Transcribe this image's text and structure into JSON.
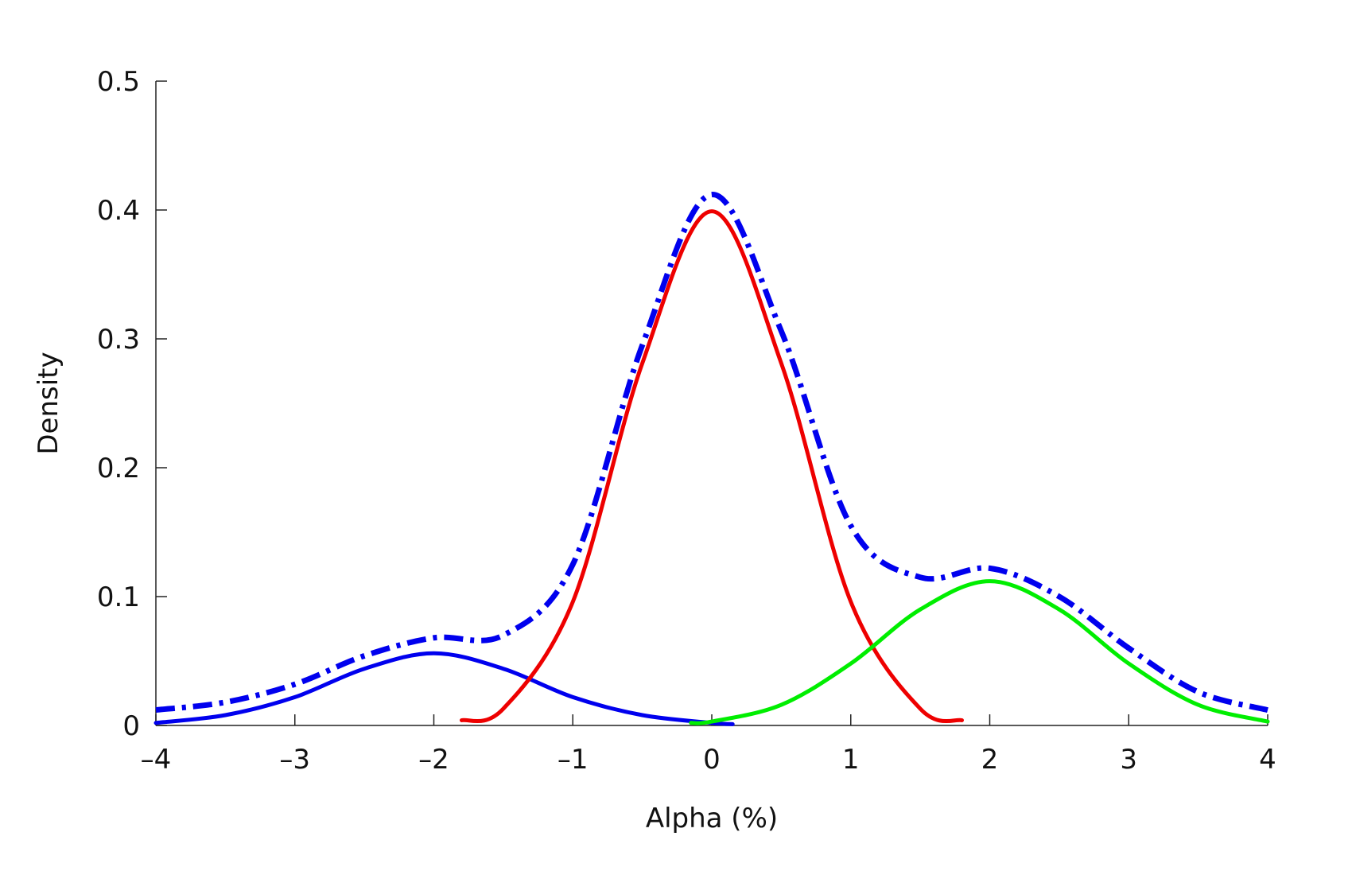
{
  "chart_data": {
    "type": "line",
    "title": "",
    "xlabel": "Alpha (%)",
    "ylabel": "Density",
    "xlim": [
      -4,
      4
    ],
    "ylim": [
      0,
      0.5
    ],
    "xticks": [
      -4,
      -3,
      -2,
      -1,
      0,
      1,
      2,
      3,
      4
    ],
    "xtick_labels": [
      "–4",
      "–3",
      "–2",
      "–1",
      "0",
      "1",
      "2",
      "3",
      "4"
    ],
    "yticks": [
      0,
      0.1,
      0.2,
      0.3,
      0.4,
      0.5
    ],
    "ytick_labels": [
      "0",
      "0.1",
      "0.2",
      "0.3",
      "0.4",
      "0.5"
    ],
    "grid": false,
    "legend": "none",
    "series": [
      {
        "color": "#0000ee",
        "style": "solid",
        "x": [
          -4,
          -3.5,
          -3,
          -2.5,
          -2,
          -1.5,
          -1,
          -0.5,
          0,
          0.15
        ],
        "y": [
          0.002,
          0.008,
          0.022,
          0.044,
          0.056,
          0.044,
          0.022,
          0.008,
          0.002,
          0.001
        ]
      },
      {
        "color": "#ee0000",
        "style": "solid",
        "x": [
          -1.8,
          -1.5,
          -1,
          -0.5,
          0,
          0.5,
          1,
          1.5,
          1.8
        ],
        "y": [
          0.004,
          0.013,
          0.096,
          0.281,
          0.399,
          0.281,
          0.096,
          0.013,
          0.004
        ]
      },
      {
        "color": "#00ee00",
        "style": "solid",
        "x": [
          -0.15,
          0,
          0.5,
          1,
          1.5,
          2,
          2.5,
          3,
          3.5,
          4
        ],
        "y": [
          0.002,
          0.003,
          0.016,
          0.048,
          0.09,
          0.112,
          0.09,
          0.048,
          0.016,
          0.003
        ]
      },
      {
        "color": "#0000ee",
        "style": "dash-dot",
        "x": [
          -4,
          -3.5,
          -3,
          -2.5,
          -2,
          -1.5,
          -1,
          -0.5,
          0,
          0.5,
          1,
          1.5,
          2,
          2.5,
          3,
          3.5,
          4
        ],
        "y": [
          0.012,
          0.018,
          0.032,
          0.054,
          0.068,
          0.07,
          0.125,
          0.295,
          0.412,
          0.306,
          0.155,
          0.115,
          0.122,
          0.1,
          0.06,
          0.026,
          0.012
        ]
      }
    ]
  }
}
